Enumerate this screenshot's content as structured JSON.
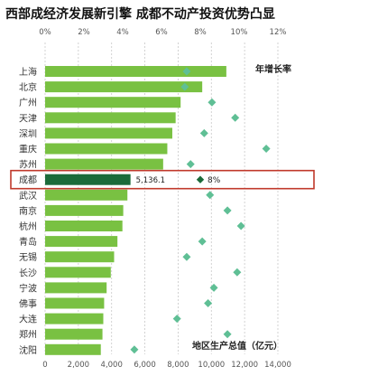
{
  "title": "西部成经济发展新引擎  成都不动产投资优势凸显",
  "chart_data": {
    "type": "bar",
    "categories": [
      "上海",
      "北京",
      "广州",
      "天津",
      "深圳",
      "重庆",
      "苏州",
      "成都",
      "武汉",
      "南京",
      "杭州",
      "青岛",
      "无锡",
      "长沙",
      "宁波",
      "佛事",
      "大连",
      "郑州",
      "沈阳"
    ],
    "series": [
      {
        "name": "地区生产总值（亿元）",
        "values": [
          10900,
          9450,
          8150,
          7850,
          7650,
          7350,
          7100,
          5136.1,
          4950,
          4700,
          4650,
          4350,
          4150,
          3950,
          3700,
          3550,
          3500,
          3450,
          3350
        ]
      },
      {
        "name": "年增长率",
        "values": [
          7.3,
          7.2,
          8.6,
          9.8,
          8.2,
          11.4,
          7.5,
          8.0,
          8.5,
          9.4,
          10.1,
          8.1,
          7.3,
          9.9,
          8.7,
          8.4,
          6.8,
          9.4,
          4.6
        ]
      }
    ],
    "xlabel": "地区生产总值（亿元）",
    "growth_label": "年增长率",
    "x_bottom_ticks": [
      "0",
      "2,000",
      "4,000",
      "6,000",
      "8,000",
      "10,000",
      "12,000",
      "14,000"
    ],
    "x_bottom_range": [
      0,
      14000
    ],
    "x_top_ticks": [
      "0%",
      "2%",
      "4%",
      "6%",
      "8%",
      "10%",
      "12%"
    ],
    "x_top_range": [
      0,
      12
    ],
    "highlight": {
      "category": "成都",
      "value_label": "5,136.1",
      "growth_label": "8%"
    },
    "colors": {
      "bar": "#79c142",
      "bar_highlight": "#1b6b3a",
      "diamond": "#5fbf95",
      "diamond_highlight": "#1b6b3a",
      "highlight_box": "#c0392b",
      "grid": "#c8c8c8",
      "axis_text": "#555555"
    }
  }
}
